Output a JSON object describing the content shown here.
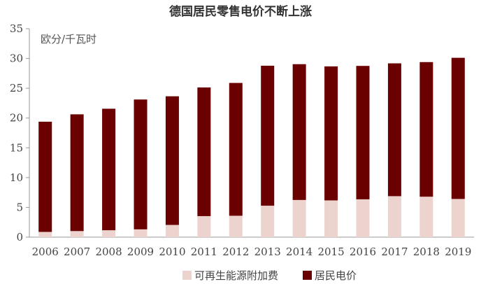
{
  "chart_data": {
    "type": "bar",
    "stacked": true,
    "title": "德国居民零售电价不断上涨",
    "unit_label": "欧分/千瓦时",
    "categories": [
      "2006",
      "2007",
      "2008",
      "2009",
      "2010",
      "2011",
      "2012",
      "2013",
      "2014",
      "2015",
      "2016",
      "2017",
      "2018",
      "2019"
    ],
    "series": [
      {
        "name": "可再生能源附加费",
        "color": "#ecd3ce",
        "values": [
          0.88,
          1.02,
          1.16,
          1.31,
          2.05,
          3.53,
          3.59,
          5.28,
          6.24,
          6.17,
          6.35,
          6.88,
          6.79,
          6.41
        ]
      },
      {
        "name": "居民电价",
        "color": "#6b0000",
        "values": [
          18.5,
          19.6,
          20.4,
          21.8,
          21.6,
          21.6,
          22.3,
          23.5,
          22.8,
          22.5,
          22.4,
          22.3,
          22.6,
          23.7
        ]
      }
    ],
    "ylim": [
      0,
      35
    ],
    "yticks": [
      "0",
      "5",
      "10",
      "15",
      "20",
      "25",
      "30",
      "35"
    ],
    "grid": false,
    "legend_position": "bottom"
  }
}
